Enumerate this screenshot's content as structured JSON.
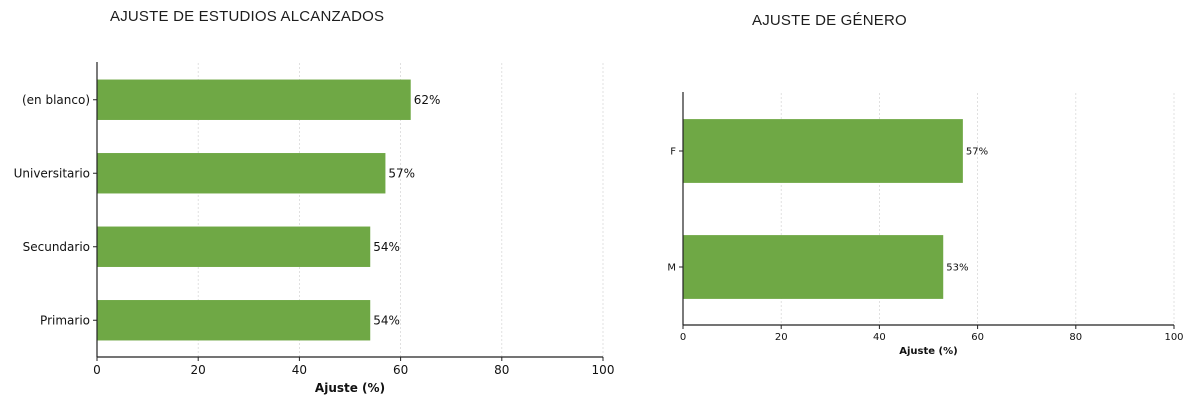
{
  "chart_data": [
    {
      "type": "bar",
      "orientation": "horizontal",
      "title": "AJUSTE DE ESTUDIOS ALCANZADOS",
      "categories": [
        "(en blanco)",
        "Universitario",
        "Secundario",
        "Primario"
      ],
      "values": [
        62,
        57,
        54,
        54
      ],
      "value_labels": [
        "62%",
        "57%",
        "54%",
        "54%"
      ],
      "xlabel": "Ajuste (%)",
      "ylabel": "",
      "xlim": [
        0,
        100
      ],
      "xticks": [
        "0",
        "20",
        "40",
        "60",
        "80",
        "100"
      ],
      "grid": "vertical dashed",
      "color": "#6fa845"
    },
    {
      "type": "bar",
      "orientation": "horizontal",
      "title": "AJUSTE DE GÉNERO",
      "categories": [
        "F",
        "M"
      ],
      "values": [
        57,
        53
      ],
      "value_labels": [
        "57%",
        "53%"
      ],
      "xlabel": "Ajuste (%)",
      "ylabel": "",
      "xlim": [
        0,
        100
      ],
      "xticks": [
        "0",
        "20",
        "40",
        "60",
        "80",
        "100"
      ],
      "grid": "vertical dashed",
      "color": "#6fa845"
    }
  ]
}
